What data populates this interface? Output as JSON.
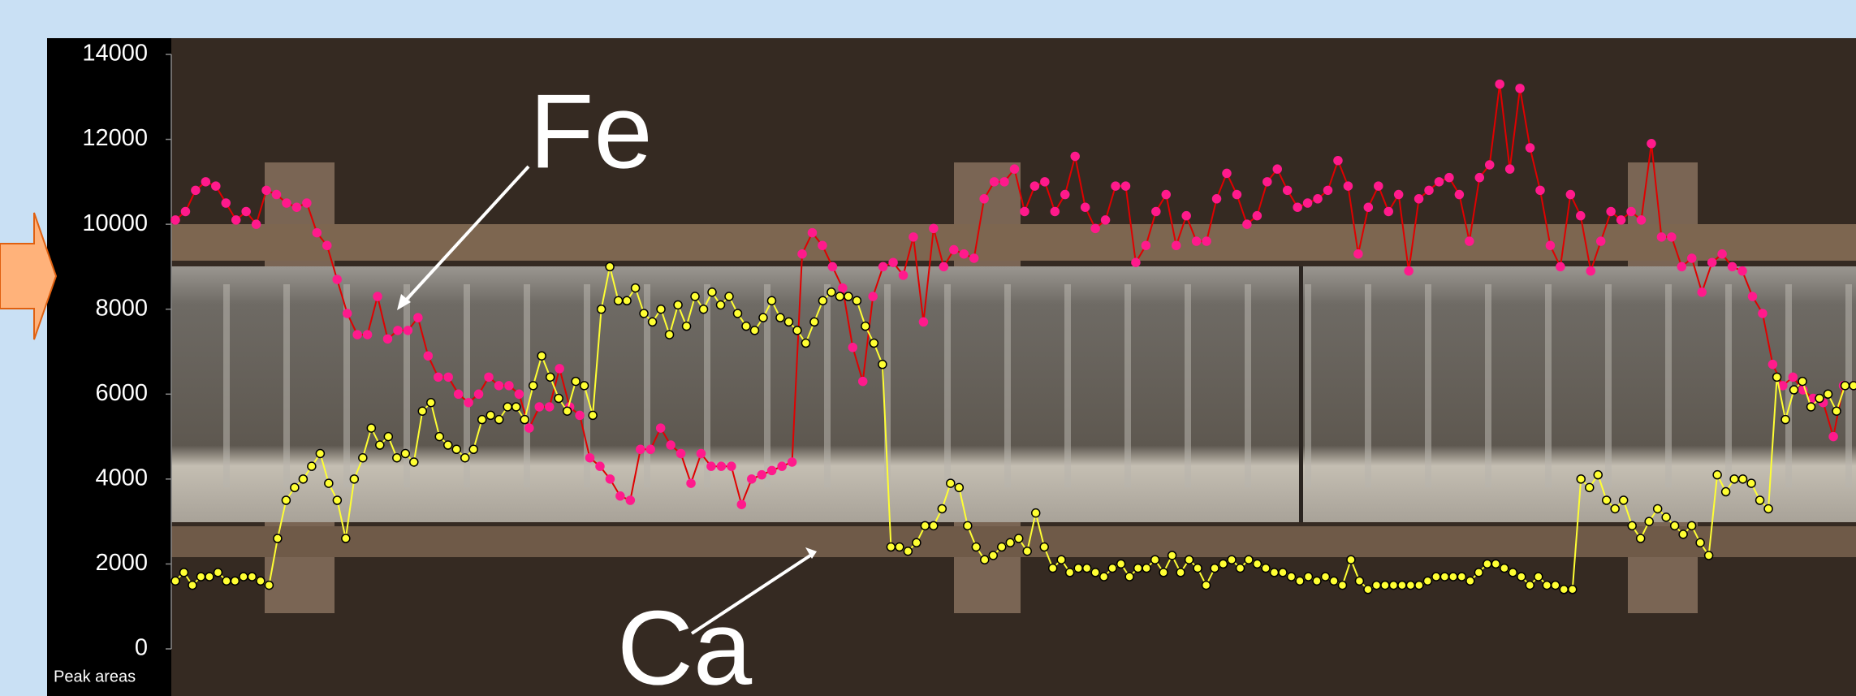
{
  "chart_data": {
    "type": "line",
    "y_axis_label": "Peak areas",
    "ylim": [
      0,
      14000
    ],
    "yticks": [
      0,
      2000,
      4000,
      6000,
      8000,
      10000,
      12000,
      14000
    ],
    "series": [
      {
        "name": "Fe",
        "color": "#e00000",
        "marker_color": "#ff1a8c",
        "values": [
          10100,
          10300,
          10800,
          11000,
          10900,
          10500,
          10100,
          10300,
          10000,
          10800,
          10700,
          10500,
          10400,
          10500,
          9800,
          9500,
          8700,
          7900,
          7400,
          7400,
          8300,
          7300,
          7500,
          7500,
          7800,
          6900,
          6400,
          6400,
          6000,
          5800,
          6000,
          6400,
          6200,
          6200,
          6000,
          5200,
          5700,
          5700,
          6600,
          5700,
          5500,
          4500,
          4300,
          4000,
          3600,
          3500,
          4700,
          4700,
          5200,
          4800,
          4600,
          3900,
          4600,
          4300,
          4300,
          4300,
          3400,
          4000,
          4100,
          4200,
          4300,
          4400,
          9300,
          9800,
          9500,
          9000,
          8500,
          7100,
          6300,
          8300,
          9000,
          9100,
          8800,
          9700,
          7700,
          9900,
          9000,
          9400,
          9300,
          9200,
          10600,
          11000,
          11000,
          11300,
          10300,
          10900,
          11000,
          10300,
          10700,
          11600,
          10400,
          9900,
          10100,
          10900,
          10900,
          9100,
          9500,
          10300,
          10700,
          9500,
          10200,
          9600,
          9600,
          10600,
          11200,
          10700,
          10000,
          10200,
          11000,
          11300,
          10800,
          10400,
          10500,
          10600,
          10800,
          11500,
          10900,
          9300,
          10400,
          10900,
          10300,
          10700,
          8900,
          10600,
          10800,
          11000,
          11100,
          10700,
          9600,
          11100,
          11400,
          13300,
          11300,
          13200,
          11800,
          10800,
          9500,
          9000,
          10700,
          10200,
          8900,
          9600,
          10300,
          10100,
          10300,
          10100,
          11900,
          9700,
          9700,
          9000,
          9200,
          8400,
          9100,
          9300,
          9000,
          8900,
          8300,
          7900,
          6700,
          6200,
          6400,
          6100,
          5900,
          5800,
          5000,
          6200,
          6200
        ]
      },
      {
        "name": "Ca",
        "color": "#ffff33",
        "marker_color": "#ffff33",
        "values": [
          1600,
          1800,
          1500,
          1700,
          1700,
          1800,
          1600,
          1600,
          1700,
          1700,
          1600,
          1500,
          2600,
          3500,
          3800,
          4000,
          4300,
          4600,
          3900,
          3500,
          2600,
          4000,
          4500,
          5200,
          4800,
          5000,
          4500,
          4600,
          4400,
          5600,
          5800,
          5000,
          4800,
          4700,
          4500,
          4700,
          5400,
          5500,
          5400,
          5700,
          5700,
          5400,
          6200,
          6900,
          6400,
          5900,
          5600,
          6300,
          6200,
          5500,
          8000,
          9000,
          8200,
          8200,
          8500,
          7900,
          7700,
          8000,
          7400,
          8100,
          7600,
          8300,
          8000,
          8400,
          8100,
          8300,
          7900,
          7600,
          7500,
          7800,
          8200,
          7800,
          7700,
          7500,
          7200,
          7700,
          8200,
          8400,
          8300,
          8300,
          8200,
          7600,
          7200,
          6700,
          2400,
          2400,
          2300,
          2500,
          2900,
          2900,
          3300,
          3900,
          3800,
          2900,
          2400,
          2100,
          2200,
          2400,
          2500,
          2600,
          2300,
          3200,
          2400,
          1900,
          2100,
          1800,
          1900,
          1900,
          1800,
          1700,
          1900,
          2000,
          1700,
          1900,
          1900,
          2100,
          1800,
          2200,
          1800,
          2100,
          1900,
          1500,
          1900,
          2000,
          2100,
          1900,
          2100,
          2000,
          1900,
          1800,
          1800,
          1700,
          1600,
          1700,
          1600,
          1700,
          1600,
          1500,
          2100,
          1600,
          1400,
          1500,
          1500,
          1500,
          1500,
          1500,
          1500,
          1600,
          1700,
          1700,
          1700,
          1700,
          1600,
          1800,
          2000,
          2000,
          1900,
          1800,
          1700,
          1500,
          1700,
          1500,
          1500,
          1400,
          1400,
          4000,
          3800,
          4100,
          3500,
          3300,
          3500,
          2900,
          2600,
          3000,
          3300,
          3100,
          2900,
          2700,
          2900,
          2500,
          2200,
          4100,
          3700,
          4000,
          4000,
          3900,
          3500,
          3300,
          6400,
          5400,
          6100,
          6300,
          5700,
          5900,
          6000,
          5600,
          6200,
          6200
        ]
      }
    ]
  }
}
